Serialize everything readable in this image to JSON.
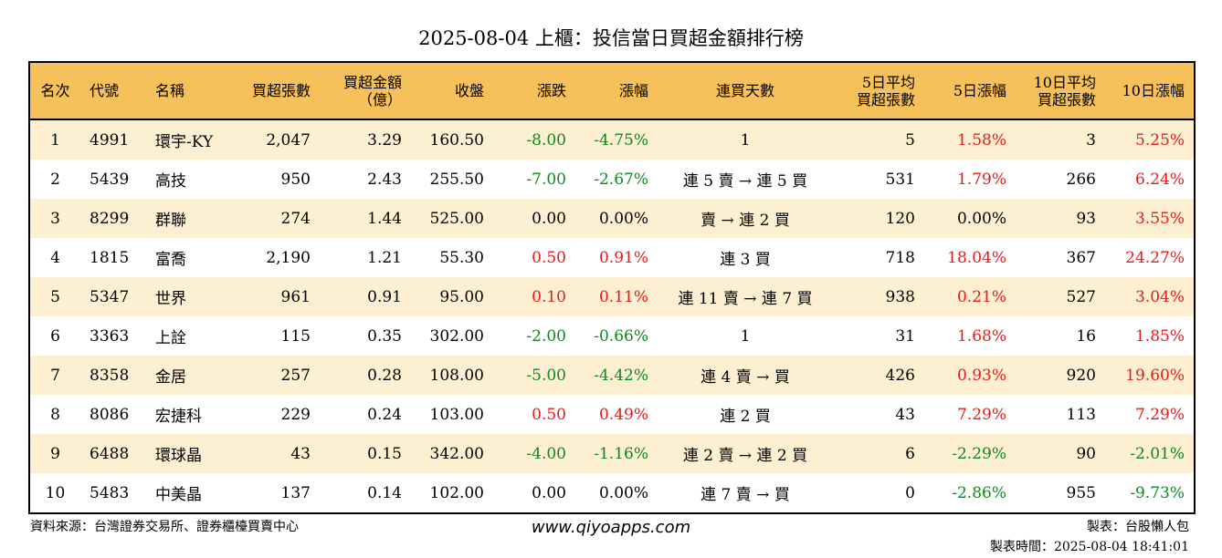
{
  "title": "2025-08-04 上櫃：投信當日買超金額排行榜",
  "columns": [
    {
      "line1": "名次",
      "line2": ""
    },
    {
      "line1": "代號",
      "line2": ""
    },
    {
      "line1": "名稱",
      "line2": ""
    },
    {
      "line1": "買超張數",
      "line2": ""
    },
    {
      "line1": "買超金額",
      "line2": "（億）"
    },
    {
      "line1": "收盤",
      "line2": ""
    },
    {
      "line1": "漲跌",
      "line2": ""
    },
    {
      "line1": "漲幅",
      "line2": ""
    },
    {
      "line1": "連買天數",
      "line2": ""
    },
    {
      "line1": "5日平均",
      "line2": "買超張數"
    },
    {
      "line1": "5日漲幅",
      "line2": ""
    },
    {
      "line1": "10日平均",
      "line2": "買超張數"
    },
    {
      "line1": "10日漲幅",
      "line2": ""
    }
  ],
  "rows": [
    {
      "rank": "1",
      "code": "4991",
      "name": "環宇-KY",
      "lots": "2,047",
      "amount": "3.29",
      "close": "160.50",
      "change": "-8.00",
      "pct": "-4.75%",
      "streak": "1",
      "avg5": "5",
      "pct5": "1.58%",
      "avg10": "3",
      "pct10": "5.25%"
    },
    {
      "rank": "2",
      "code": "5439",
      "name": "高技",
      "lots": "950",
      "amount": "2.43",
      "close": "255.50",
      "change": "-7.00",
      "pct": "-2.67%",
      "streak": "連 5 賣 → 連 5 買",
      "avg5": "531",
      "pct5": "1.79%",
      "avg10": "266",
      "pct10": "6.24%"
    },
    {
      "rank": "3",
      "code": "8299",
      "name": "群聯",
      "lots": "274",
      "amount": "1.44",
      "close": "525.00",
      "change": "0.00",
      "pct": "0.00%",
      "streak": "賣 → 連 2 買",
      "avg5": "120",
      "pct5": "0.00%",
      "avg10": "93",
      "pct10": "3.55%"
    },
    {
      "rank": "4",
      "code": "1815",
      "name": "富喬",
      "lots": "2,190",
      "amount": "1.21",
      "close": "55.30",
      "change": "0.50",
      "pct": "0.91%",
      "streak": "連 3 買",
      "avg5": "718",
      "pct5": "18.04%",
      "avg10": "367",
      "pct10": "24.27%"
    },
    {
      "rank": "5",
      "code": "5347",
      "name": "世界",
      "lots": "961",
      "amount": "0.91",
      "close": "95.00",
      "change": "0.10",
      "pct": "0.11%",
      "streak": "連 11 賣 → 連 7 買",
      "avg5": "938",
      "pct5": "0.21%",
      "avg10": "527",
      "pct10": "3.04%"
    },
    {
      "rank": "6",
      "code": "3363",
      "name": "上詮",
      "lots": "115",
      "amount": "0.35",
      "close": "302.00",
      "change": "-2.00",
      "pct": "-0.66%",
      "streak": "1",
      "avg5": "31",
      "pct5": "1.68%",
      "avg10": "16",
      "pct10": "1.85%"
    },
    {
      "rank": "7",
      "code": "8358",
      "name": "金居",
      "lots": "257",
      "amount": "0.28",
      "close": "108.00",
      "change": "-5.00",
      "pct": "-4.42%",
      "streak": "連 4 賣 → 買",
      "avg5": "426",
      "pct5": "0.93%",
      "avg10": "920",
      "pct10": "19.60%"
    },
    {
      "rank": "8",
      "code": "8086",
      "name": "宏捷科",
      "lots": "229",
      "amount": "0.24",
      "close": "103.00",
      "change": "0.50",
      "pct": "0.49%",
      "streak": "連 2 買",
      "avg5": "43",
      "pct5": "7.29%",
      "avg10": "113",
      "pct10": "7.29%"
    },
    {
      "rank": "9",
      "code": "6488",
      "name": "環球晶",
      "lots": "43",
      "amount": "0.15",
      "close": "342.00",
      "change": "-4.00",
      "pct": "-1.16%",
      "streak": "連 2 賣 → 連 2 買",
      "avg5": "6",
      "pct5": "-2.29%",
      "avg10": "90",
      "pct10": "-2.01%"
    },
    {
      "rank": "10",
      "code": "5483",
      "name": "中美晶",
      "lots": "137",
      "amount": "0.14",
      "close": "102.00",
      "change": "0.00",
      "pct": "0.00%",
      "streak": "連 7 賣 → 買",
      "avg5": "0",
      "pct5": "-2.86%",
      "avg10": "955",
      "pct10": "-9.73%"
    }
  ],
  "footer": {
    "source": "資料來源：台灣證券交易所、證券櫃檯買賣中心",
    "website": "www.qiyoapps.com",
    "maker": "製表：台股懶人包",
    "made_time": "製表時間：2025-08-04 18:41:01"
  },
  "colors": {
    "header_bg": "#f6c15a",
    "stripe": "#fdefd2",
    "up": "#e41b1b",
    "down": "#0b8a1c"
  }
}
